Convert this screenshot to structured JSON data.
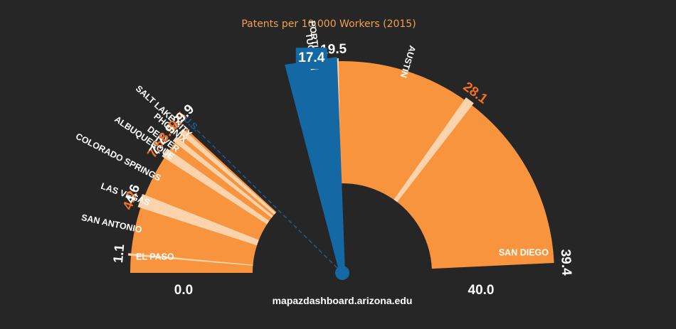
{
  "title": "Patents per 10,000 Workers (2015)",
  "source": "mapazdashboard.arizona.edu",
  "axis": {
    "min_label": "0.0",
    "max_label": "40.0"
  },
  "colors": {
    "background": "#262626",
    "bar": "#f7943d",
    "bar_light": "#ffad66",
    "separator": "#fbd3ad",
    "highlight": "#1469a5",
    "us_line": "#1b5e92",
    "label_orange": "#f36f21",
    "label_white": "#ffffff"
  },
  "chart_data": {
    "type": "bar",
    "subtype": "radial-fan",
    "title": "Patents per 10,000 Workers (2015)",
    "ylim": [
      0,
      40
    ],
    "categories": [
      "El Paso",
      "San Antonio",
      "Las Vegas",
      "Colorado Springs",
      "Albuquerque",
      "Denver",
      "Phoenix",
      "Salt Lake City",
      "Tucson",
      "Portland",
      "Austin",
      "San Diego"
    ],
    "values": [
      1.1,
      4.2,
      4.6,
      7.5,
      7.7,
      8.6,
      9.2,
      9.5,
      17.4,
      19.5,
      28.1,
      39.4
    ],
    "bars": [
      {
        "city": "EL PASO",
        "value": 1.1,
        "value_label": "1.1",
        "label_color": "white"
      },
      {
        "city": "SAN ANTONIO",
        "value": 4.2,
        "value_label": "4.2",
        "label_color": "orange"
      },
      {
        "city": "LAS VEGAS",
        "value": 4.6,
        "value_label": "4.6",
        "label_color": "white"
      },
      {
        "city": "COLORADO SPRINGS",
        "value": 7.5,
        "value_label": "7.5",
        "label_color": "orange"
      },
      {
        "city": "ALBUQUERQUE",
        "value": 7.7,
        "value_label": "7.7",
        "label_color": "white"
      },
      {
        "city": "DENVER",
        "value": 8.6,
        "value_label": "8.6",
        "label_color": "orange"
      },
      {
        "city": "PHOENIX",
        "value": 9.2,
        "value_label": "9.2",
        "label_color": "white"
      },
      {
        "city": "SALT LAKE CITY",
        "value": 9.5,
        "value_label": "9.5",
        "label_color": "orange"
      },
      {
        "city": "TUCSON",
        "value": 17.4,
        "value_label": "17.4",
        "label_color": "white",
        "highlight": true
      },
      {
        "city": "PORTLAND",
        "value": 19.5,
        "value_label": "19.5",
        "label_color": "white"
      },
      {
        "city": "AUSTIN",
        "value": 28.1,
        "value_label": "28.1",
        "label_color": "orange"
      },
      {
        "city": "SAN DIEGO",
        "value": 39.4,
        "value_label": "39.4",
        "label_color": "white"
      }
    ],
    "reference": {
      "label": "U.S.",
      "value": 9.9,
      "value_label": "9.9"
    }
  }
}
